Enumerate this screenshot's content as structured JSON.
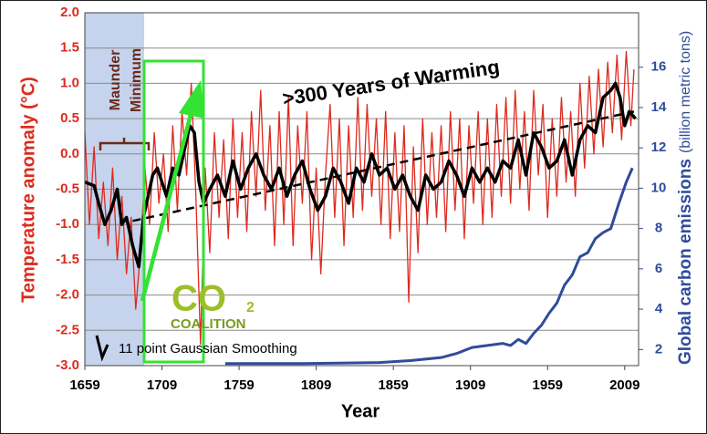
{
  "chart_data": {
    "type": "line",
    "title": ">300 Years of Warming",
    "xlabel": "Year",
    "ylabel": "Temperature anomaly (°C)",
    "y2label": "Global carbon emissions",
    "y2label_unit": "(billion metric tons)",
    "annotations": {
      "maunder": "Maunder",
      "minimum": "Minimum",
      "logo_co": "CO",
      "logo_2": "2",
      "logo_coalition": "COALITION"
    },
    "xlim": [
      1659,
      2018
    ],
    "xticks": [
      1659,
      1709,
      1759,
      1809,
      1859,
      1909,
      1959,
      2009
    ],
    "ylim": [
      -3,
      2
    ],
    "yticks": [
      {
        "value": -3,
        "label": "-3.0"
      },
      {
        "value": -2.5,
        "label": "-2.5"
      },
      {
        "value": -2,
        "label": "-2.0"
      },
      {
        "value": -1.5,
        "label": "-1.5"
      },
      {
        "value": -1,
        "label": "-1.0"
      },
      {
        "value": -0.5,
        "label": "-0.5"
      },
      {
        "value": 0,
        "label": "0.0"
      },
      0.5,
      {
        "value": 1,
        "label": "1.0"
      },
      1.5,
      {
        "value": 2,
        "label": "2.0"
      }
    ],
    "y2lim": [
      1.2,
      18.7
    ],
    "y2ticks": [
      2,
      4,
      6,
      8,
      10,
      12,
      14,
      16
    ],
    "grid": true,
    "series": [
      {
        "color": "#dd2a1e",
        "width": 1.3,
        "x": [
          1659,
          1662,
          1665,
          1668,
          1671,
          1674,
          1677,
          1680,
          1683,
          1686,
          1689,
          1692,
          1695,
          1698,
          1701,
          1704,
          1707,
          1710,
          1713,
          1716,
          1719,
          1722,
          1725,
          1728,
          1731,
          1734,
          1737,
          1740,
          1743,
          1746,
          1749,
          1752,
          1755,
          1758,
          1761,
          1764,
          1767,
          1770,
          1773,
          1776,
          1779,
          1782,
          1785,
          1788,
          1791,
          1794,
          1797,
          1800,
          1803,
          1806,
          1809,
          1812,
          1815,
          1818,
          1821,
          1824,
          1827,
          1830,
          1833,
          1836,
          1839,
          1842,
          1845,
          1848,
          1851,
          1854,
          1857,
          1860,
          1863,
          1866,
          1869,
          1872,
          1875,
          1878,
          1881,
          1884,
          1887,
          1890,
          1893,
          1896,
          1899,
          1902,
          1905,
          1908,
          1911,
          1914,
          1917,
          1920,
          1923,
          1926,
          1929,
          1932,
          1935,
          1938,
          1941,
          1944,
          1947,
          1950,
          1953,
          1956,
          1959,
          1962,
          1965,
          1968,
          1971,
          1974,
          1977,
          1980,
          1983,
          1986,
          1989,
          1992,
          1995,
          1998,
          2001,
          2004,
          2007,
          2010,
          2013,
          2015
        ],
        "values": [
          0.3,
          -1.0,
          0.1,
          -1.2,
          -0.4,
          -1.3,
          -0.2,
          -1.5,
          -0.6,
          -1.7,
          -0.9,
          -2.2,
          -1.4,
          -0.2,
          -1.0,
          0.3,
          -0.7,
          0.0,
          -1.1,
          0.4,
          -0.8,
          0.6,
          -0.3,
          1.0,
          -0.6,
          -2.7,
          -0.2,
          -1.4,
          0.3,
          -0.9,
          0.2,
          -1.2,
          0.5,
          -0.9,
          0.3,
          -1.1,
          0.6,
          -0.6,
          0.9,
          -0.8,
          0.4,
          -1.3,
          0.6,
          -1.0,
          0.8,
          -1.3,
          0.4,
          -0.7,
          0.6,
          -1.5,
          -0.2,
          -1.7,
          -0.3,
          0.7,
          -0.9,
          0.5,
          -1.3,
          0.4,
          -0.9,
          0.8,
          -0.8,
          0.7,
          -0.6,
          0.5,
          -1.0,
          0.6,
          -1.2,
          0.3,
          -1.1,
          0.4,
          -2.1,
          0.1,
          -1.4,
          0.5,
          -1.0,
          0.3,
          -0.9,
          0.4,
          -1.1,
          0.6,
          -0.8,
          0.5,
          -1.2,
          0.4,
          -0.7,
          0.6,
          -1.0,
          0.5,
          -0.9,
          0.7,
          -0.6,
          0.8,
          -0.7,
          0.9,
          -0.5,
          0.6,
          -0.8,
          0.9,
          -0.3,
          0.7,
          -0.9,
          0.5,
          -0.6,
          0.8,
          -0.4,
          0.6,
          -0.6,
          1.0,
          -0.2,
          1.1,
          0.0,
          1.2,
          0.1,
          1.3,
          0.3,
          1.4,
          0.2,
          1.45,
          0.4,
          1.2
        ]
      },
      {
        "name": "11 point Gaussian Smoothing",
        "color": "#000000",
        "width": 3.5,
        "x": [
          1659,
          1665,
          1668,
          1672,
          1676,
          1680,
          1683,
          1686,
          1690,
          1694,
          1697,
          1700,
          1703,
          1706,
          1709,
          1712,
          1716,
          1720,
          1724,
          1727,
          1730,
          1733,
          1736,
          1740,
          1745,
          1750,
          1755,
          1760,
          1765,
          1770,
          1775,
          1780,
          1785,
          1790,
          1795,
          1800,
          1805,
          1810,
          1815,
          1820,
          1825,
          1830,
          1835,
          1840,
          1845,
          1850,
          1855,
          1860,
          1865,
          1870,
          1875,
          1880,
          1885,
          1890,
          1895,
          1900,
          1905,
          1910,
          1915,
          1920,
          1925,
          1930,
          1935,
          1940,
          1945,
          1950,
          1955,
          1960,
          1965,
          1970,
          1975,
          1980,
          1985,
          1990,
          1995,
          2000,
          2003,
          2006,
          2009,
          2012,
          2016
        ],
        "values": [
          -0.4,
          -0.45,
          -0.7,
          -1.0,
          -0.8,
          -0.5,
          -1.0,
          -0.9,
          -1.3,
          -1.6,
          -0.9,
          -0.6,
          -0.3,
          -0.2,
          -0.4,
          -0.6,
          -0.2,
          -0.3,
          0.1,
          0.4,
          0.3,
          -0.4,
          -0.7,
          -0.5,
          -0.3,
          -0.6,
          -0.1,
          -0.5,
          -0.2,
          0.0,
          -0.3,
          -0.5,
          -0.2,
          -0.6,
          -0.3,
          -0.1,
          -0.5,
          -0.8,
          -0.6,
          -0.2,
          -0.4,
          -0.7,
          -0.2,
          -0.4,
          0.0,
          -0.3,
          -0.2,
          -0.5,
          -0.3,
          -0.6,
          -0.8,
          -0.3,
          -0.5,
          -0.4,
          -0.1,
          -0.3,
          -0.6,
          -0.2,
          -0.4,
          -0.2,
          -0.4,
          -0.1,
          -0.2,
          0.2,
          -0.3,
          0.3,
          0.1,
          -0.2,
          -0.1,
          0.2,
          -0.3,
          0.2,
          0.4,
          0.3,
          0.8,
          0.9,
          1.0,
          0.8,
          0.4,
          0.6,
          0.5
        ]
      },
      {
        "color": "#000000",
        "width": 2.5,
        "dash": "9,6",
        "x": [
          1690,
          2015
        ],
        "values": [
          -0.95,
          0.6
        ]
      },
      {
        "color": "#2f4b9b",
        "width": 3,
        "axis": "y2",
        "x": [
          1750,
          1800,
          1850,
          1870,
          1890,
          1900,
          1910,
          1920,
          1930,
          1935,
          1940,
          1945,
          1950,
          1955,
          1960,
          1965,
          1970,
          1975,
          1980,
          1985,
          1990,
          1995,
          2000,
          2005,
          2010,
          2014
        ],
        "values": [
          1.3,
          1.3,
          1.35,
          1.45,
          1.6,
          1.8,
          2.1,
          2.2,
          2.3,
          2.2,
          2.5,
          2.3,
          2.8,
          3.2,
          3.8,
          4.3,
          5.2,
          5.7,
          6.6,
          6.8,
          7.5,
          7.8,
          8.0,
          9.2,
          10.3,
          11.0
        ]
      }
    ]
  }
}
